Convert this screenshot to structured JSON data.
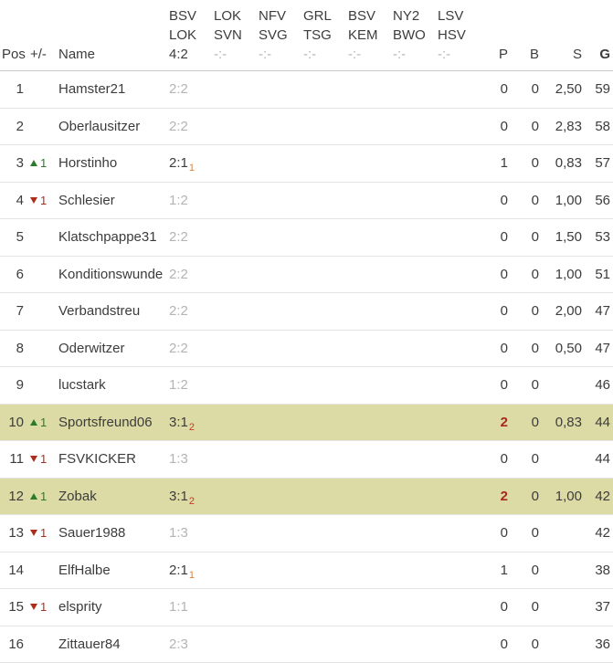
{
  "colors": {
    "highlight_row": "#dcdba6",
    "rank_up_green": "#2b7b2b",
    "rank_down_red": "#ad2d1c",
    "subscript_1pt_orange": "#d6823e",
    "subscript_2pt_red": "#c33a28",
    "hot_points_red": "#a8281a",
    "muted_gray": "#b4b4b4",
    "text_dark": "#3c3c3c"
  },
  "header": {
    "pos_label": "Pos",
    "delta_label": "+/-",
    "name_label": "Name",
    "p_label": "P",
    "b_label": "B",
    "s_label": "S",
    "g_label": "G",
    "matches": [
      {
        "home": "BSV",
        "away": "LOK",
        "score": "4:2",
        "score_class": "played"
      },
      {
        "home": "LOK",
        "away": "SVN",
        "score": "-:-",
        "score_class": "unplayed"
      },
      {
        "home": "NFV",
        "away": "SVG",
        "score": "-:-",
        "score_class": "unplayed"
      },
      {
        "home": "GRL",
        "away": "TSG",
        "score": "-:-",
        "score_class": "unplayed"
      },
      {
        "home": "BSV",
        "away": "KEM",
        "score": "-:-",
        "score_class": "unplayed"
      },
      {
        "home": "NY2",
        "away": "BWO",
        "score": "-:-",
        "score_class": "unplayed"
      },
      {
        "home": "LSV",
        "away": "HSV",
        "score": "-:-",
        "score_class": "unplayed"
      }
    ]
  },
  "rows": [
    {
      "pos": "1",
      "move": "",
      "move_class": "",
      "name": "Hamster21",
      "tip": "2:2",
      "tip_class": "muted",
      "tip_sub": "",
      "tip_sub_class": "",
      "p": "0",
      "p_class": "",
      "b": "0",
      "s": "2,50",
      "g": "59",
      "row_class": ""
    },
    {
      "pos": "2",
      "move": "",
      "move_class": "",
      "name": "Oberlausitzer",
      "tip": "2:2",
      "tip_class": "muted",
      "tip_sub": "",
      "tip_sub_class": "",
      "p": "0",
      "p_class": "",
      "b": "0",
      "s": "2,83",
      "g": "58",
      "row_class": ""
    },
    {
      "pos": "3",
      "move": "1",
      "move_class": "up",
      "name": "Horstinho",
      "tip": "2:1",
      "tip_class": "scored",
      "tip_sub": "1",
      "tip_sub_class": "sub1",
      "p": "1",
      "p_class": "",
      "b": "0",
      "s": "0,83",
      "g": "57",
      "row_class": ""
    },
    {
      "pos": "4",
      "move": "1",
      "move_class": "down",
      "name": "Schlesier",
      "tip": "1:2",
      "tip_class": "muted",
      "tip_sub": "",
      "tip_sub_class": "",
      "p": "0",
      "p_class": "",
      "b": "0",
      "s": "1,00",
      "g": "56",
      "row_class": ""
    },
    {
      "pos": "5",
      "move": "",
      "move_class": "",
      "name": "Klatschpappe31",
      "tip": "2:2",
      "tip_class": "muted",
      "tip_sub": "",
      "tip_sub_class": "",
      "p": "0",
      "p_class": "",
      "b": "0",
      "s": "1,50",
      "g": "53",
      "row_class": ""
    },
    {
      "pos": "6",
      "move": "",
      "move_class": "",
      "name": "Konditionswunde",
      "tip": "2:2",
      "tip_class": "muted",
      "tip_sub": "",
      "tip_sub_class": "",
      "p": "0",
      "p_class": "",
      "b": "0",
      "s": "1,00",
      "g": "51",
      "row_class": ""
    },
    {
      "pos": "7",
      "move": "",
      "move_class": "",
      "name": "Verbandstreu",
      "tip": "2:2",
      "tip_class": "muted",
      "tip_sub": "",
      "tip_sub_class": "",
      "p": "0",
      "p_class": "",
      "b": "0",
      "s": "2,00",
      "g": "47",
      "row_class": ""
    },
    {
      "pos": "8",
      "move": "",
      "move_class": "",
      "name": "Oderwitzer",
      "tip": "2:2",
      "tip_class": "muted",
      "tip_sub": "",
      "tip_sub_class": "",
      "p": "0",
      "p_class": "",
      "b": "0",
      "s": "0,50",
      "g": "47",
      "row_class": ""
    },
    {
      "pos": "9",
      "move": "",
      "move_class": "",
      "name": "lucstark",
      "tip": "1:2",
      "tip_class": "muted",
      "tip_sub": "",
      "tip_sub_class": "",
      "p": "0",
      "p_class": "",
      "b": "0",
      "s": "",
      "g": "46",
      "row_class": ""
    },
    {
      "pos": "10",
      "move": "1",
      "move_class": "up",
      "name": "Sportsfreund06",
      "tip": "3:1",
      "tip_class": "scored",
      "tip_sub": "2",
      "tip_sub_class": "sub2",
      "p": "2",
      "p_class": "hot",
      "b": "0",
      "s": "0,83",
      "g": "44",
      "row_class": "highlight"
    },
    {
      "pos": "11",
      "move": "1",
      "move_class": "down",
      "name": "FSVKICKER",
      "tip": "1:3",
      "tip_class": "muted",
      "tip_sub": "",
      "tip_sub_class": "",
      "p": "0",
      "p_class": "",
      "b": "0",
      "s": "",
      "g": "44",
      "row_class": ""
    },
    {
      "pos": "12",
      "move": "1",
      "move_class": "up",
      "name": "Zobak",
      "tip": "3:1",
      "tip_class": "scored",
      "tip_sub": "2",
      "tip_sub_class": "sub2",
      "p": "2",
      "p_class": "hot",
      "b": "0",
      "s": "1,00",
      "g": "42",
      "row_class": "highlight"
    },
    {
      "pos": "13",
      "move": "1",
      "move_class": "down",
      "name": "Sauer1988",
      "tip": "1:3",
      "tip_class": "muted",
      "tip_sub": "",
      "tip_sub_class": "",
      "p": "0",
      "p_class": "",
      "b": "0",
      "s": "",
      "g": "42",
      "row_class": ""
    },
    {
      "pos": "14",
      "move": "",
      "move_class": "",
      "name": "ElfHalbe",
      "tip": "2:1",
      "tip_class": "scored",
      "tip_sub": "1",
      "tip_sub_class": "sub1",
      "p": "1",
      "p_class": "",
      "b": "0",
      "s": "",
      "g": "38",
      "row_class": ""
    },
    {
      "pos": "15",
      "move": "1",
      "move_class": "down",
      "name": "elsprity",
      "tip": "1:1",
      "tip_class": "muted",
      "tip_sub": "",
      "tip_sub_class": "",
      "p": "0",
      "p_class": "",
      "b": "0",
      "s": "",
      "g": "37",
      "row_class": ""
    },
    {
      "pos": "16",
      "move": "",
      "move_class": "",
      "name": "Zittauer84",
      "tip": "2:3",
      "tip_class": "muted",
      "tip_sub": "",
      "tip_sub_class": "",
      "p": "0",
      "p_class": "",
      "b": "0",
      "s": "",
      "g": "36",
      "row_class": ""
    }
  ]
}
